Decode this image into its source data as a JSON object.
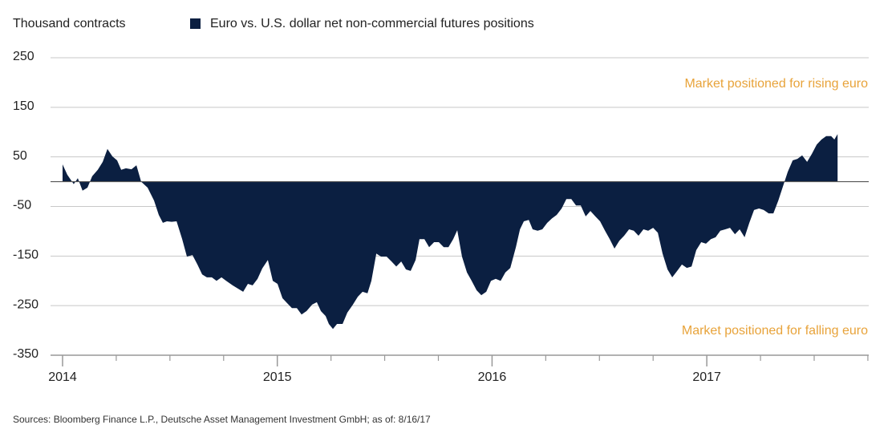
{
  "chart_data": {
    "type": "area",
    "y_label": "Thousand contracts",
    "series": [
      {
        "name": "Euro vs. U.S. dollar net non-commercial futures positions",
        "color": "#0b1f41",
        "values": [
          35,
          14,
          -5,
          7,
          -18,
          -12,
          11,
          24,
          40,
          66,
          51,
          43,
          24,
          27,
          25,
          33,
          0,
          -12,
          -38,
          -67,
          -83,
          -80,
          -81,
          -80,
          -116,
          -151,
          -148,
          -167,
          -187,
          -193,
          -193,
          -200,
          -193,
          -200,
          -209,
          -216,
          -222,
          -206,
          -209,
          -196,
          -175,
          -158,
          -200,
          -206,
          -235,
          -245,
          -255,
          -255,
          -268,
          -261,
          -248,
          -243,
          -261,
          -271,
          -287,
          -297,
          -287,
          -287,
          -264,
          -248,
          -232,
          -222,
          -225,
          -200,
          -145,
          -151,
          -151,
          -161,
          -171,
          -161,
          -177,
          -180,
          -158,
          -116,
          -116,
          -132,
          -122,
          -122,
          -132,
          -132,
          -116,
          -98,
          -151,
          -183,
          -200,
          -219,
          -229,
          -222,
          -200,
          -196,
          -200,
          -183,
          -174,
          -132,
          -96,
          -80,
          -77,
          -96,
          -99,
          -96,
          -83,
          -74,
          -67,
          -54,
          -35,
          -35,
          -48,
          -48,
          -70,
          -59,
          -70,
          -80,
          -99,
          -116,
          -135,
          -119,
          -109,
          -96,
          -99,
          -109,
          -96,
          -99,
          -93,
          -103,
          -145,
          -177,
          -193,
          -180,
          -167,
          -174,
          -171,
          -138,
          -122,
          -125,
          -116,
          -112,
          -99,
          -96,
          -93,
          -106,
          -96,
          -112,
          -83,
          -57,
          -54,
          -57,
          -64,
          -64,
          -38,
          -9,
          20,
          43,
          46,
          53,
          40,
          56,
          75,
          85,
          92,
          92,
          85,
          96
        ]
      }
    ],
    "x": [
      2014.0,
      2014.022,
      2014.052,
      2014.071,
      2014.093,
      2014.116,
      2014.138,
      2014.164,
      2014.187,
      2014.209,
      2014.232,
      2014.254,
      2014.273,
      2014.295,
      2014.321,
      2014.344,
      2014.366,
      2014.396,
      2014.426,
      2014.448,
      2014.467,
      2014.486,
      2014.508,
      2014.531,
      2014.557,
      2014.579,
      2014.605,
      2014.628,
      2014.65,
      2014.672,
      2014.695,
      2014.717,
      2014.74,
      2014.762,
      2014.792,
      2014.818,
      2014.841,
      2014.863,
      2014.885,
      2014.908,
      2014.93,
      2014.956,
      2014.979,
      2015.001,
      2015.024,
      2015.046,
      2015.068,
      2015.091,
      2015.113,
      2015.136,
      2015.162,
      2015.184,
      2015.203,
      2015.225,
      2015.24,
      2015.259,
      2015.278,
      2015.304,
      2015.326,
      2015.352,
      2015.375,
      2015.397,
      2015.42,
      2015.438,
      2015.461,
      2015.483,
      2015.509,
      2015.532,
      2015.554,
      2015.577,
      2015.599,
      2015.621,
      2015.644,
      2015.662,
      2015.685,
      2015.707,
      2015.73,
      2015.752,
      2015.775,
      2015.797,
      2015.819,
      2015.838,
      2015.86,
      2015.883,
      2015.905,
      2015.928,
      2015.95,
      2015.973,
      2015.995,
      2016.017,
      2016.04,
      2016.062,
      2016.085,
      2016.111,
      2016.13,
      2016.148,
      2016.171,
      2016.189,
      2016.212,
      2016.234,
      2016.257,
      2016.279,
      2016.301,
      2016.324,
      2016.346,
      2016.369,
      2016.391,
      2016.413,
      2016.436,
      2016.458,
      2016.481,
      2016.503,
      2016.526,
      2016.548,
      2016.57,
      2016.593,
      2016.615,
      2016.638,
      2016.66,
      2016.682,
      2016.705,
      2016.727,
      2016.75,
      2016.772,
      2016.794,
      2016.817,
      2016.839,
      2016.862,
      2016.884,
      2016.907,
      2016.929,
      2016.951,
      2016.974,
      2016.996,
      2017.019,
      2017.041,
      2017.063,
      2017.086,
      2017.108,
      2017.131,
      2017.153,
      2017.176,
      2017.198,
      2017.22,
      2017.243,
      2017.265,
      2017.288,
      2017.31,
      2017.333,
      2017.355,
      2017.377,
      2017.4,
      2017.422,
      2017.444,
      2017.467,
      2017.489,
      2017.512,
      2017.534,
      2017.556,
      2017.579,
      2017.594,
      2017.609
    ],
    "xlim": [
      2013.944,
      2017.754
    ],
    "xticks": [
      2014,
      2015,
      2016,
      2017
    ],
    "xminorticks": [
      2014.25,
      2014.5,
      2014.75,
      2015.25,
      2015.5,
      2015.75,
      2016.25,
      2016.5,
      2016.75,
      2017.25,
      2017.5,
      2017.75
    ],
    "ylim": [
      -350,
      250
    ],
    "yticks": [
      250,
      150,
      50,
      -50,
      -150,
      -250,
      -350
    ],
    "grid": true,
    "annotations": [
      "Market positioned for rising euro",
      "Market positioned for falling euro"
    ],
    "source": "Sources: Bloomberg Finance L.P., Deutsche Asset Management Investment GmbH; as of: 8/16/17"
  }
}
